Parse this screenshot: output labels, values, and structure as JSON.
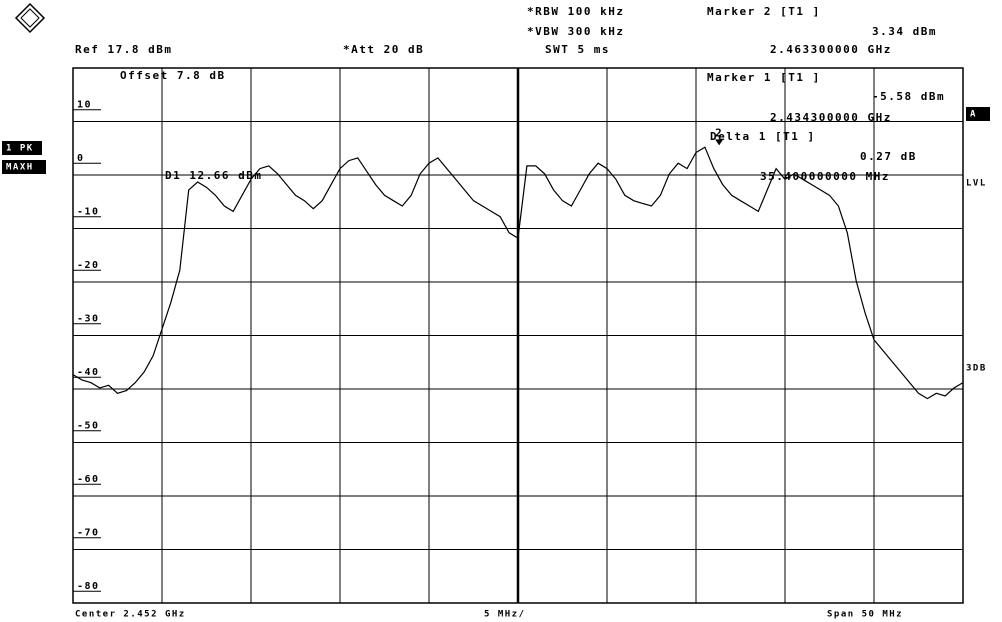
{
  "chart_data": {
    "type": "line",
    "annotations": [
      "*RBW 100 kHz",
      "*VBW 300 kHz",
      "SWT 5 ms",
      "Marker 2 [T1 ]",
      "3.34 dBm",
      "2.463300000 GHz",
      "Ref 17.8 dBm",
      "*Att 20 dB",
      "Offset 7.8 dB",
      "Marker 1 [T1 ]",
      "-5.58 dBm",
      "2.434300000 GHz",
      "Delta 1 [T1 ]",
      "0.27 dB",
      "35.400000000 MHz",
      "D1 12.66 dBm",
      "1 PK",
      "MAXH",
      "A",
      "LVL",
      "3DB",
      "Center 2.452 GHz",
      "5 MHz/",
      "Span 50 MHz"
    ],
    "xlim": [
      2.427,
      2.477
    ],
    "xgrid": [
      2.432,
      2.437,
      2.442,
      2.447,
      2.452,
      2.457,
      2.462,
      2.467,
      2.472
    ],
    "ylim": [
      -82.2,
      17.8
    ],
    "yticks": [
      10,
      0,
      -10,
      -20,
      -30,
      -40,
      -50,
      -60,
      -70,
      -80
    ],
    "ygrid": [
      7.8,
      -2.2,
      -12.2,
      -22.2,
      -32.2,
      -42.2,
      -52.2,
      -62.2,
      -72.2
    ],
    "grid": true,
    "marker": {
      "label": "2",
      "x": 2.4633,
      "value": 3.34
    },
    "x": [
      2.427,
      2.4275,
      2.428,
      2.4285,
      2.429,
      2.4295,
      2.43,
      2.4305,
      2.431,
      2.4315,
      2.432,
      2.4325,
      2.433,
      2.4335,
      2.434,
      2.4345,
      2.435,
      2.4355,
      2.436,
      2.4365,
      2.437,
      2.4375,
      2.438,
      2.4385,
      2.439,
      2.4395,
      2.44,
      2.4405,
      2.441,
      2.4415,
      2.442,
      2.4425,
      2.443,
      2.4435,
      2.444,
      2.4445,
      2.445,
      2.4455,
      2.446,
      2.4465,
      2.447,
      2.4475,
      2.448,
      2.4485,
      2.449,
      2.4495,
      2.45,
      2.4505,
      2.451,
      2.4515,
      2.452,
      2.4525,
      2.453,
      2.4535,
      2.454,
      2.4545,
      2.455,
      2.4555,
      2.456,
      2.4565,
      2.457,
      2.4575,
      2.458,
      2.4585,
      2.459,
      2.4595,
      2.46,
      2.4605,
      2.461,
      2.4615,
      2.462,
      2.4625,
      2.463,
      2.4635,
      2.464,
      2.4645,
      2.465,
      2.4655,
      2.466,
      2.4665,
      2.467,
      2.4675,
      2.468,
      2.4685,
      2.469,
      2.4695,
      2.47,
      2.4705,
      2.471,
      2.4715,
      2.472,
      2.4725,
      2.473,
      2.4735,
      2.474,
      2.4745,
      2.475,
      2.4755,
      2.476,
      2.4765,
      2.477
    ],
    "series": [
      {
        "color": "#000000",
        "values": [
          -39.5,
          -40.5,
          -41,
          -42,
          -41.5,
          -43,
          -42.5,
          -41,
          -39,
          -36,
          -31,
          -26,
          -20,
          -5,
          -3.5,
          -4.5,
          -6,
          -8,
          -9,
          -6,
          -3,
          -1,
          -0.5,
          -2,
          -4,
          -6,
          -7,
          -8.5,
          -7,
          -4,
          -1,
          0.5,
          1,
          -1.5,
          -4,
          -6,
          -7,
          -8,
          -6,
          -2,
          0,
          1,
          -1,
          -3,
          -5,
          -7,
          -8,
          -9,
          -10,
          -13,
          -14,
          -0.5,
          -0.5,
          -2,
          -5,
          -7,
          -8,
          -5,
          -2,
          0,
          -1,
          -3,
          -6,
          -7,
          -7.5,
          -8,
          -6,
          -2,
          0,
          -1,
          2,
          3,
          -1,
          -4,
          -6,
          -7,
          -8,
          -9,
          -5,
          -1,
          -3,
          -2,
          -3,
          -4,
          -5,
          -6,
          -8,
          -13,
          -22,
          -28,
          -33,
          -35,
          -37,
          -39,
          -41,
          -43,
          -44,
          -43,
          -43.5,
          -42,
          -41
        ]
      }
    ]
  }
}
